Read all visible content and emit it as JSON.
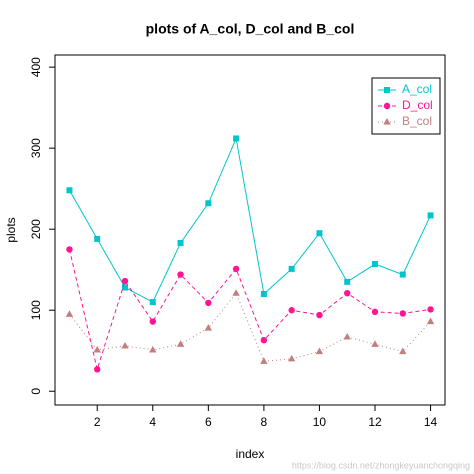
{
  "chart_data": {
    "type": "line",
    "title": "plots of A_col, D_col and B_col",
    "x_label": "index",
    "y_label": "plots",
    "x": [
      1,
      2,
      3,
      4,
      5,
      6,
      7,
      8,
      9,
      10,
      11,
      12,
      13,
      14
    ],
    "series": [
      {
        "name": "A_col",
        "color": "#00c5cd",
        "marker": "square",
        "dash": "solid",
        "values": [
          248,
          188,
          128,
          110,
          183,
          232,
          312,
          120,
          151,
          195,
          135,
          157,
          144,
          217
        ]
      },
      {
        "name": "D_col",
        "color": "#ff1493",
        "marker": "circle",
        "dash": "dashed",
        "values": [
          175,
          27,
          136,
          86,
          144,
          109,
          151,
          63,
          100,
          94,
          121,
          98,
          96,
          101
        ]
      },
      {
        "name": "B_col",
        "color": "#c08081",
        "marker": "triangle",
        "dash": "dotted",
        "values": [
          95,
          51,
          56,
          51,
          58,
          78,
          121,
          37,
          40,
          49,
          67,
          58,
          49,
          86
        ]
      }
    ],
    "xlim": [
      0.48,
      14.52
    ],
    "ylim": [
      -17,
      415
    ],
    "xticks": [
      2,
      4,
      6,
      8,
      10,
      12,
      14
    ],
    "yticks": [
      0,
      100,
      200,
      300,
      400
    ],
    "legend": "topright",
    "watermark": "https://blog.csdn.net/zhongkeyuanchongqing"
  }
}
